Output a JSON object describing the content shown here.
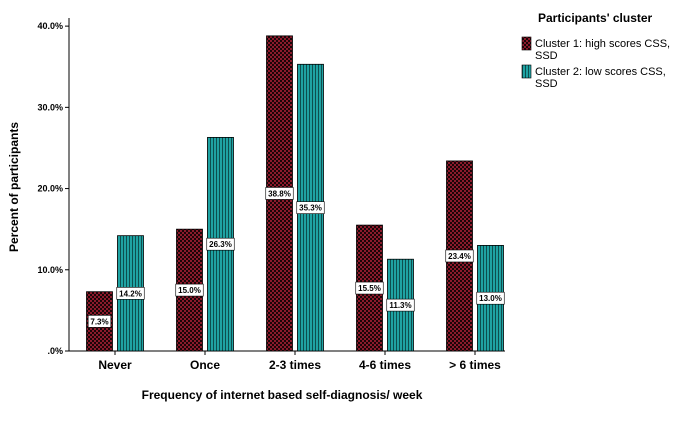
{
  "chart_data": {
    "type": "bar",
    "title": "",
    "xlabel": "Frequency of internet based self-diagnosis/ week",
    "ylabel": "Percent of participants",
    "ylim": [
      0,
      41
    ],
    "yticks": [
      0,
      10,
      20,
      30,
      40
    ],
    "ytick_labels": [
      ".0%",
      "10.0%",
      "20.0%",
      "30.0%",
      "40.0%"
    ],
    "grid": false,
    "categories": [
      "Never",
      "Once",
      "2-3 times",
      "4-6 times",
      "> 6 times"
    ],
    "legend": {
      "title": "Participants' cluster",
      "position": "top-right"
    },
    "series": [
      {
        "name": "Cluster 1: high scores CSS, SSD",
        "legend_lines": [
          "Cluster 1: high scores CSS,",
          "SSD"
        ],
        "values": [
          7.3,
          15.0,
          38.8,
          15.5,
          23.4
        ],
        "labels": [
          "7.3%",
          "15.0%",
          "38.8%",
          "15.5%",
          "23.4%"
        ],
        "color": "#8b1a2b",
        "pattern": "checker"
      },
      {
        "name": "Cluster 2: low scores CSS, SSD",
        "legend_lines": [
          "Cluster 2: low scores CSS,",
          "SSD"
        ],
        "values": [
          14.2,
          26.3,
          35.3,
          11.3,
          13.0
        ],
        "labels": [
          "14.2%",
          "26.3%",
          "35.3%",
          "11.3%",
          "13.0%"
        ],
        "color": "#1a9a9a",
        "pattern": "vertical-lines"
      }
    ]
  }
}
